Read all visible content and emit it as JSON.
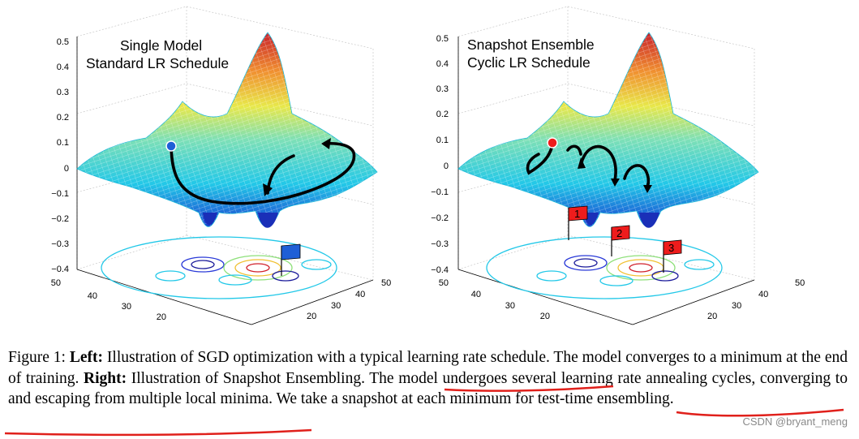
{
  "figure": {
    "left_panel": {
      "title_line1": "Single Model",
      "title_line2": "Standard LR Schedule",
      "z_ticks": [
        "0.5",
        "0.4",
        "0.3",
        "0.2",
        "0.1",
        "0",
        "−0.1",
        "−0.2",
        "−0.3",
        "−0.4"
      ],
      "y_ticks": [
        "50",
        "40",
        "30",
        "20"
      ],
      "x_ticks": [
        "50",
        "40",
        "30",
        "20"
      ]
    },
    "right_panel": {
      "title_line1": "Snapshot Ensemble",
      "title_line2": "Cyclic LR Schedule",
      "z_ticks": [
        "0.5",
        "0.4",
        "0.3",
        "0.2",
        "0.1",
        "0",
        "−0.1",
        "−0.2",
        "−0.3",
        "−0.4"
      ],
      "y_ticks": [
        "50",
        "40",
        "30",
        "20"
      ],
      "x_ticks": [
        "50",
        "40",
        "30",
        "20"
      ],
      "flags": [
        "1",
        "2",
        "3"
      ]
    },
    "colors": {
      "surface_low": "#22c8e8",
      "surface_mid": "#e8e84a",
      "surface_high": "#c8202a",
      "path": "#000000",
      "flag_red": "#ee1c1c",
      "flag_blue": "#1f5fd6",
      "underline": "#e0201b"
    }
  },
  "caption": {
    "label": "Figure 1:",
    "left_bold": "Left:",
    "left_text": "Illustration of SGD optimization with a typical learning rate schedule. The model converges to a minimum at the end of training.",
    "right_bold": "Right:",
    "right_pre": "Illustration of",
    "snapshot_term": "Snapshot Ensembling",
    "right_mid": ". The model undergoes several learning rate annealing cycles, converging to and escaping from multiple local minima.",
    "snapshot_sentence_a": "We take a snapshot at each minimum for",
    "snapshot_sentence_b": "test-time ensembling",
    "end": "."
  },
  "watermark": "CSDN @bryant_meng"
}
